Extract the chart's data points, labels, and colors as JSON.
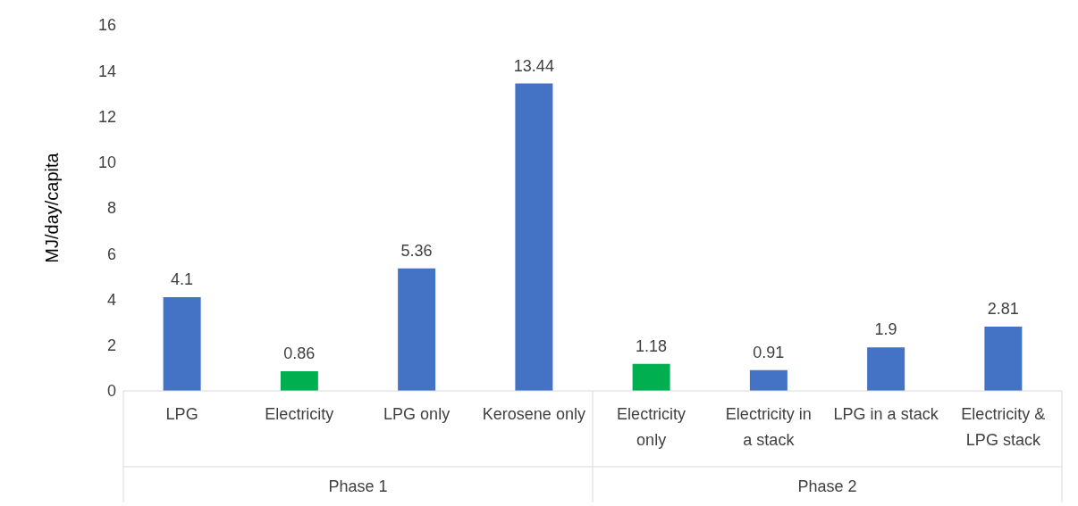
{
  "chart_data": {
    "type": "bar",
    "ylabel": "MJ/day/capita",
    "categories": [
      "LPG",
      "Electricity",
      "LPG only",
      "Kerosene only",
      "Electricity only",
      "Electricity in a stack",
      "LPG in a stack",
      "Electricity & LPG stack"
    ],
    "values": [
      4.1,
      0.86,
      5.36,
      13.44,
      1.18,
      0.91,
      1.9,
      2.81
    ],
    "colors": [
      "#4472c4",
      "#00b050",
      "#4472c4",
      "#4472c4",
      "#00b050",
      "#4472c4",
      "#4472c4",
      "#4472c4"
    ],
    "ylim": [
      0,
      16
    ],
    "yticks": [
      0,
      2,
      4,
      6,
      8,
      10,
      12,
      14,
      16
    ],
    "grid": false,
    "data_labels": true,
    "legend": false,
    "annotations": [
      "Phase 1",
      "Phase 2"
    ]
  }
}
